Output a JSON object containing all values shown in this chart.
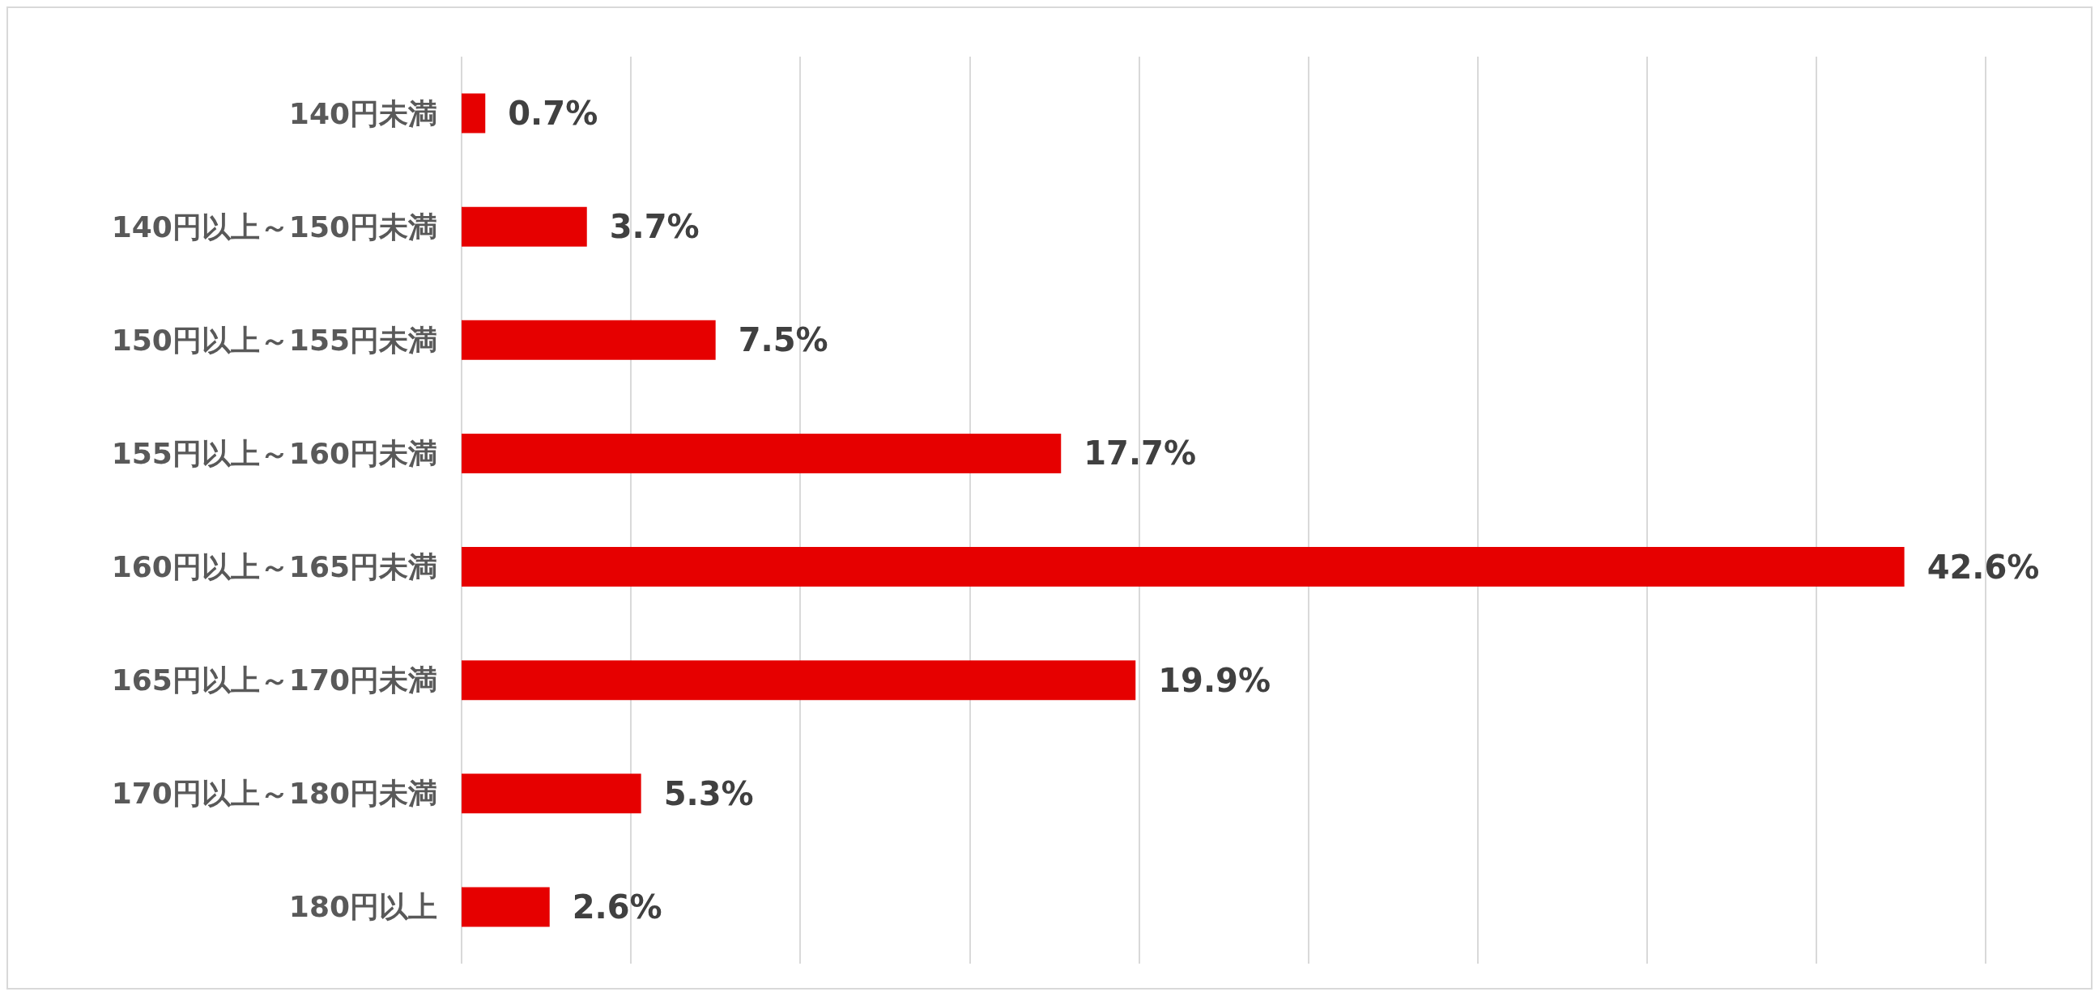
{
  "chart_data": {
    "type": "bar",
    "orientation": "horizontal",
    "categories": [
      "140円未満",
      "140円以上～150円未満",
      "150円以上～155円未満",
      "155円以上～160円未満",
      "160円以上～165円未満",
      "165円以上～170円未満",
      "170円以上～180円未満",
      "180円以上"
    ],
    "values": [
      0.7,
      3.7,
      7.5,
      17.7,
      42.6,
      19.9,
      5.3,
      2.6
    ],
    "value_labels": [
      "0.7%",
      "3.7%",
      "7.5%",
      "17.7%",
      "42.6%",
      "19.9%",
      "5.3%",
      "2.6%"
    ],
    "color": "#e60000",
    "xlim": [
      0,
      45
    ],
    "xticks": [
      {
        "value": 0,
        "label": null
      },
      {
        "value": 5,
        "label": null
      },
      {
        "value": 10,
        "label": null
      },
      {
        "value": 15,
        "label": null
      },
      {
        "value": 20,
        "label": null
      },
      {
        "value": 25,
        "label": null
      },
      {
        "value": 30,
        "label": null
      },
      {
        "value": 35,
        "label": null
      },
      {
        "value": 40,
        "label": null
      },
      {
        "value": 45,
        "label": null
      }
    ],
    "tick_labels": "y",
    "grid": "x"
  }
}
